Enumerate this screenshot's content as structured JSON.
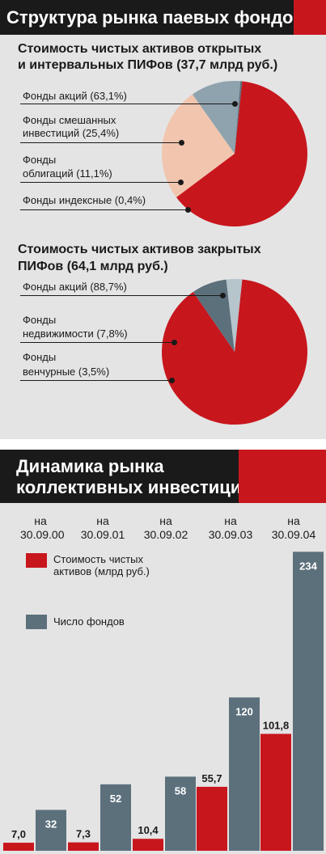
{
  "panel1": {
    "title": "Структура рынка паевых фондов",
    "open_funds": {
      "title_line1": "Стоимость чистых активов открытых",
      "title_line2": "и интервальных ПИФов  (37,7 млрд руб.)",
      "labels": [
        "Фонды акций (63,1%)",
        "Фонды смешанных",
        "инвестиций (25,4%)",
        "Фонды",
        "облигаций (11,1%)",
        "Фонды индексные (0,4%)"
      ]
    },
    "closed_funds": {
      "title_line1": "Стоимость чистых активов закрытых",
      "title_line2": "ПИФов (64,1 млрд руб.)",
      "labels": [
        "Фонды акций (88,7%)",
        "Фонды",
        "недвижимости (7,8%)",
        "Фонды",
        "венчурные (3,5%)"
      ]
    }
  },
  "panel2": {
    "title_line1": "Динамика рынка",
    "title_line2": "коллективных инвестиций",
    "legend": [
      "Стоимость чистых",
      "активов (млрд руб.)",
      "Число фондов"
    ]
  },
  "colors": {
    "red": "#c8161d",
    "peach": "#f1c5ae",
    "blue_gray": "#8fa3ae",
    "slate": "#5c707c",
    "light_slate": "#b6c4cc",
    "dark": "#1a1a1a",
    "panel_bg": "#e4e4e4"
  },
  "chart_data": [
    {
      "type": "pie",
      "title": "Стоимость чистых активов открытых и интервальных ПИФов  (37,7 млрд руб.)",
      "slices": [
        {
          "label": "Фонды акций",
          "value": 63.1,
          "color": "#c8161d"
        },
        {
          "label": "Фонды смешанных инвестиций",
          "value": 25.4,
          "color": "#f1c5ae"
        },
        {
          "label": "Фонды облигаций",
          "value": 11.1,
          "color": "#8fa3ae"
        },
        {
          "label": "Фонды индексные",
          "value": 0.4,
          "color": "#5c707c"
        }
      ]
    },
    {
      "type": "pie",
      "title": "Стоимость чистых активов закрытых ПИФов (64,1 млрд руб.)",
      "slices": [
        {
          "label": "Фонды акций",
          "value": 88.7,
          "color": "#c8161d"
        },
        {
          "label": "Фонды недвижимости",
          "value": 7.8,
          "color": "#5c707c"
        },
        {
          "label": "Фонды венчурные",
          "value": 3.5,
          "color": "#b6c4cc"
        }
      ]
    },
    {
      "type": "bar",
      "title": "Динамика рынка коллективных инвестиций",
      "categories": [
        "на\n30.09.00",
        "на\n30.09.01",
        "на\n30.09.02",
        "на\n30.09.03",
        "на\n30.09.04"
      ],
      "series": [
        {
          "name": "Стоимость чистых активов (млрд руб.)",
          "values": [
            7.0,
            7.3,
            10.4,
            55.7,
            101.8
          ],
          "labels": [
            "7,0",
            "7,3",
            "10,4",
            "55,7",
            "101,8"
          ],
          "color": "#c8161d"
        },
        {
          "name": "Число фондов",
          "values": [
            32,
            52,
            58,
            120,
            234
          ],
          "labels": [
            "32",
            "52",
            "58",
            "120",
            "234"
          ],
          "color": "#5c707c"
        }
      ]
    }
  ]
}
